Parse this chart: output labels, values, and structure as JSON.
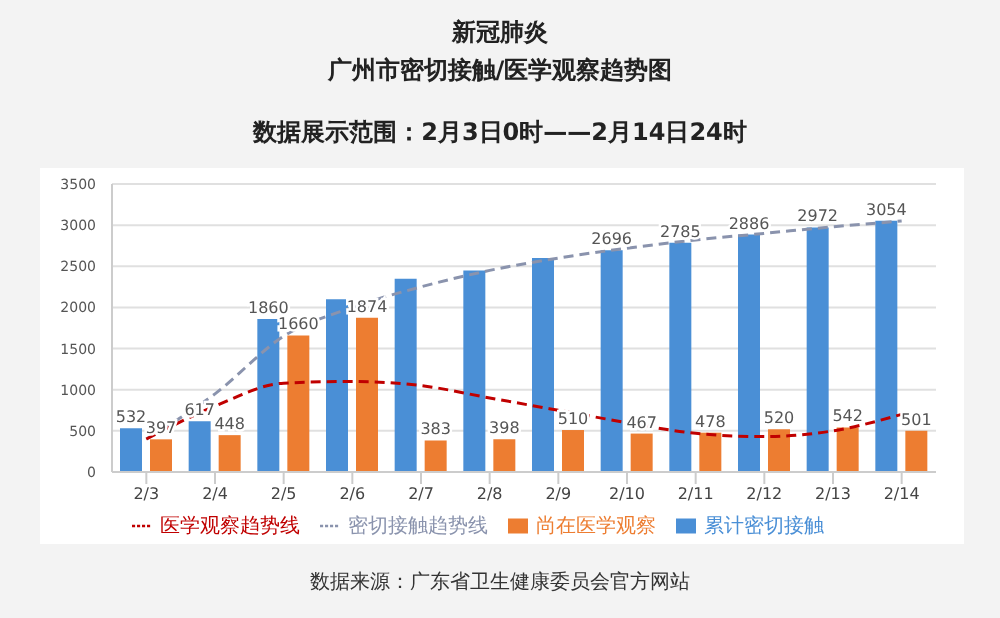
{
  "chart_data": {
    "type": "bar",
    "title": "新冠肺炎",
    "subtitle": "广州市密切接触/医学观察趋势图",
    "annotations": [
      "数据展示范围：2月3日0时——2月14日24时",
      "数据来源：广东省卫生健康委员会官方网站"
    ],
    "categories": [
      "2/3",
      "2/4",
      "2/5",
      "2/6",
      "2/7",
      "2/8",
      "2/9",
      "2/10",
      "2/11",
      "2/12",
      "2/13",
      "2/14"
    ],
    "series": [
      {
        "name": "累计密切接触",
        "color": "#4a8fd6",
        "values": [
          532,
          617,
          1860,
          2100,
          2350,
          2450,
          2600,
          2696,
          2785,
          2886,
          2972,
          3054
        ],
        "value_labels": [
          "532",
          "617",
          "1860",
          null,
          null,
          null,
          null,
          "2696",
          "2785",
          "2886",
          "2972",
          "3054"
        ]
      },
      {
        "name": "尚在医学观察",
        "color": "#ed7d31",
        "values": [
          397,
          448,
          1660,
          1874,
          383,
          398,
          510,
          467,
          478,
          520,
          542,
          501
        ],
        "value_labels": [
          "397",
          "448",
          "1660",
          "1874",
          "383",
          "398",
          "510",
          "467",
          "478",
          "520",
          "542",
          "501"
        ]
      },
      {
        "name": "密切接触趋势线",
        "type": "line",
        "color": "#8a93ad",
        "line_style": "dashed",
        "values": [
          400,
          950,
          1650,
          2000,
          2250,
          2450,
          2600,
          2720,
          2820,
          2900,
          2980,
          3050
        ]
      },
      {
        "name": "医学观察趋势线",
        "type": "line",
        "color": "#c00000",
        "line_style": "dashed",
        "values": [
          400,
          800,
          1080,
          1100,
          1050,
          900,
          750,
          600,
          470,
          430,
          500,
          700
        ]
      }
    ],
    "ylim": [
      0,
      3500
    ],
    "yticks": [
      0,
      500,
      1000,
      1500,
      2000,
      2500,
      3000,
      3500
    ],
    "grid": "y",
    "legend": "bottom"
  }
}
